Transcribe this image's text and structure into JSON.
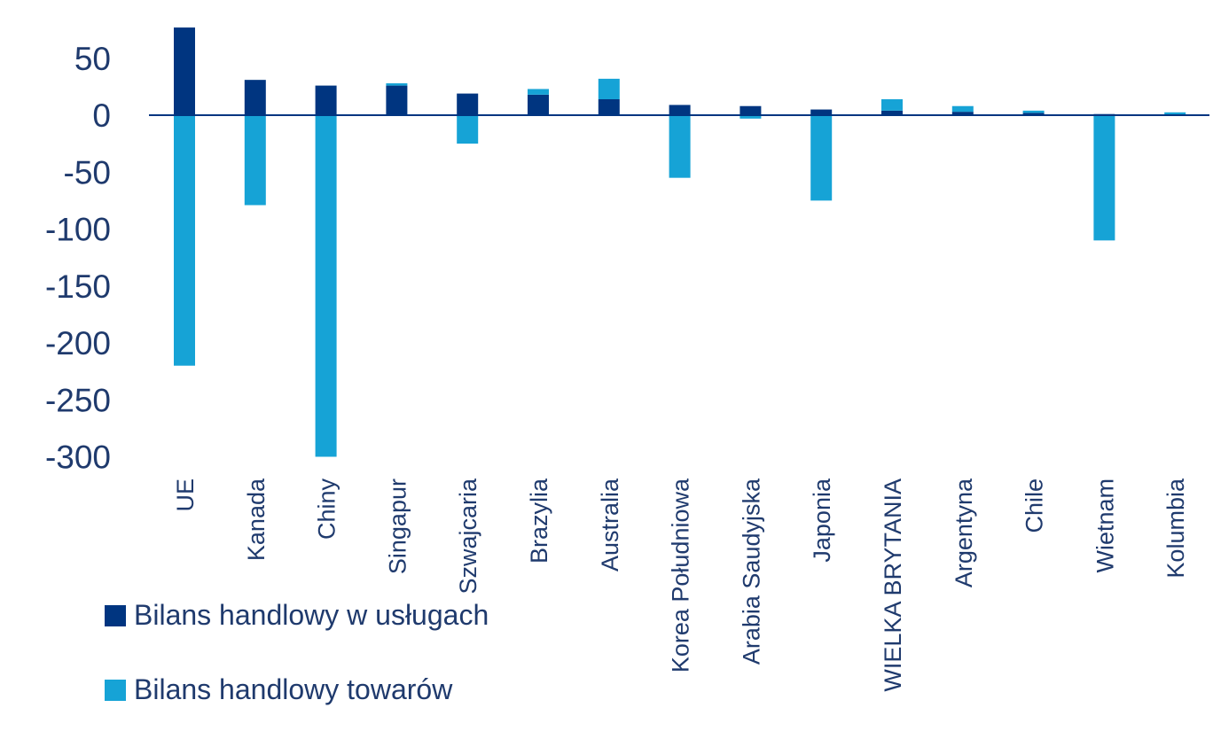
{
  "chart_data": {
    "type": "bar",
    "stacked": true,
    "categories": [
      "UE",
      "Kanada",
      "Chiny",
      "Singapur",
      "Szwajcaria",
      "Brazylia",
      "Australia",
      "Korea Południowa",
      "Arabia Saudyjska",
      "Japonia",
      "WIELKA BRYTANIA",
      "Argentyna",
      "Chile",
      "Wietnam",
      "Kolumbia"
    ],
    "series": [
      {
        "name": "Bilans handlowy w usługach",
        "color": "#003580",
        "values": [
          77,
          31,
          26,
          26,
          19,
          18,
          14,
          9,
          8,
          5,
          4,
          3,
          2,
          1,
          0.5
        ]
      },
      {
        "name": "Bilans handlowy towarów",
        "color": "#16a3d6",
        "values": [
          -220,
          -79,
          -300,
          2,
          -25,
          5,
          18,
          -55,
          -3,
          -75,
          10,
          5,
          2,
          -110,
          2
        ]
      }
    ],
    "y_ticks": [
      "50",
      "0",
      "-50",
      "-100",
      "-150",
      "-200",
      "-250",
      "-300"
    ],
    "ylim": [
      -300,
      77
    ],
    "grid": false,
    "legend_position": "bottom-left"
  }
}
